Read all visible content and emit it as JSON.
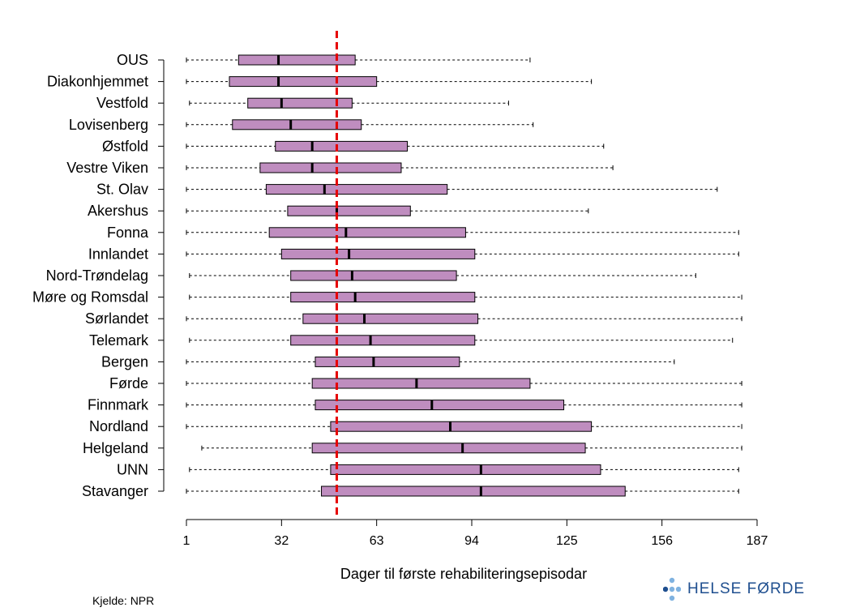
{
  "chart_data": {
    "type": "box",
    "xlabel": "Dager til første rehabiliteringsepisodar",
    "xlim": [
      1,
      187
    ],
    "xticks": [
      1,
      32,
      63,
      94,
      125,
      156,
      187
    ],
    "reference_line": 50,
    "box_color": "#bf8dbf",
    "reference_color": "#e60000",
    "categories": [
      "OUS",
      "Diakonhjemmet",
      "Vestfold",
      "Lovisenberg",
      "Østfold",
      "Vestre Viken",
      "St. Olav",
      "Akershus",
      "Fonna",
      "Innlandet",
      "Nord-Trøndelag",
      "Møre og Romsdal",
      "Sørlandet",
      "Telemark",
      "Bergen",
      "Førde",
      "Finnmark",
      "Nordland",
      "Helgeland",
      "UNN",
      "Stavanger"
    ],
    "boxes": [
      {
        "min": 1,
        "q1": 18,
        "median": 31,
        "q3": 56,
        "max": 113
      },
      {
        "min": 1,
        "q1": 15,
        "median": 31,
        "q3": 63,
        "max": 133
      },
      {
        "min": 2,
        "q1": 21,
        "median": 32,
        "q3": 55,
        "max": 106
      },
      {
        "min": 1,
        "q1": 16,
        "median": 35,
        "q3": 58,
        "max": 114
      },
      {
        "min": 1,
        "q1": 30,
        "median": 42,
        "q3": 73,
        "max": 137
      },
      {
        "min": 1,
        "q1": 25,
        "median": 42,
        "q3": 71,
        "max": 140
      },
      {
        "min": 1,
        "q1": 27,
        "median": 46,
        "q3": 86,
        "max": 174
      },
      {
        "min": 1,
        "q1": 34,
        "median": 50,
        "q3": 74,
        "max": 132
      },
      {
        "min": 1,
        "q1": 28,
        "median": 53,
        "q3": 92,
        "max": 181
      },
      {
        "min": 1,
        "q1": 32,
        "median": 54,
        "q3": 95,
        "max": 181
      },
      {
        "min": 2,
        "q1": 35,
        "median": 55,
        "q3": 89,
        "max": 167
      },
      {
        "min": 2,
        "q1": 35,
        "median": 56,
        "q3": 95,
        "max": 182
      },
      {
        "min": 1,
        "q1": 39,
        "median": 59,
        "q3": 96,
        "max": 182
      },
      {
        "min": 2,
        "q1": 35,
        "median": 61,
        "q3": 95,
        "max": 179
      },
      {
        "min": 1,
        "q1": 43,
        "median": 62,
        "q3": 90,
        "max": 160
      },
      {
        "min": 1,
        "q1": 42,
        "median": 76,
        "q3": 113,
        "max": 182
      },
      {
        "min": 1,
        "q1": 43,
        "median": 81,
        "q3": 124,
        "max": 182
      },
      {
        "min": 1,
        "q1": 48,
        "median": 87,
        "q3": 133,
        "max": 182
      },
      {
        "min": 6,
        "q1": 42,
        "median": 91,
        "q3": 131,
        "max": 182
      },
      {
        "min": 2,
        "q1": 48,
        "median": 97,
        "q3": 136,
        "max": 181
      },
      {
        "min": 1,
        "q1": 45,
        "median": 97,
        "q3": 144,
        "max": 181
      }
    ]
  },
  "source": "Kjelde: NPR",
  "logo": {
    "text": "HELSE FØRDE",
    "color": "#1f4f8f"
  }
}
